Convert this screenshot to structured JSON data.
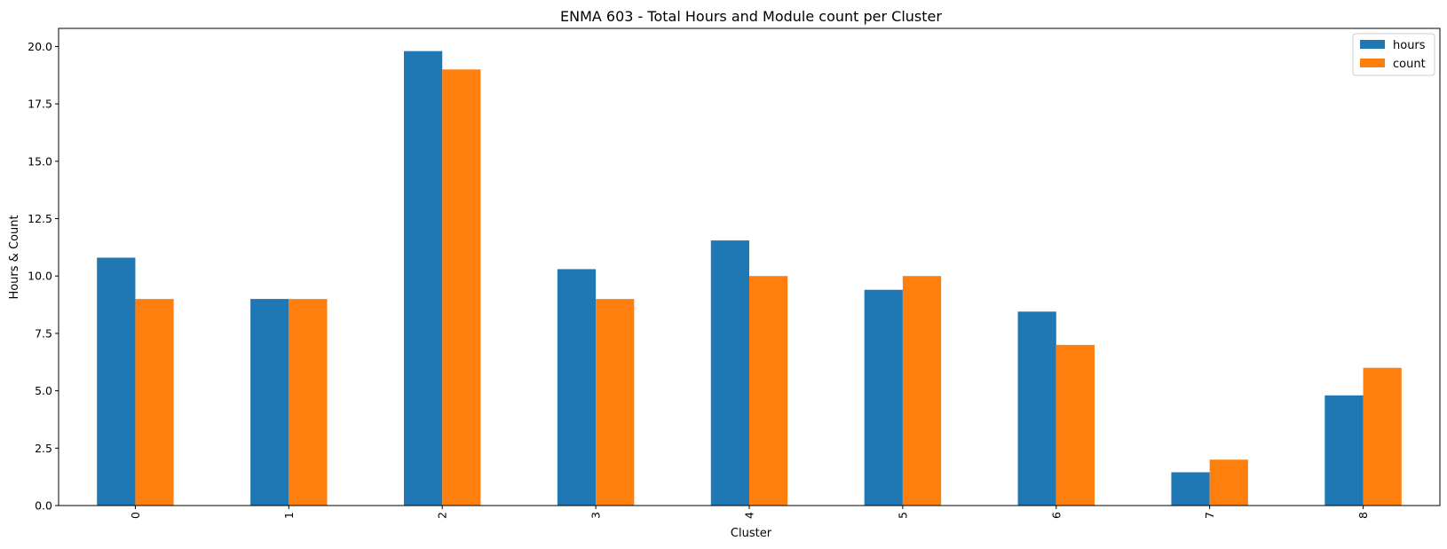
{
  "chart_data": {
    "type": "bar",
    "title": "ENMA 603 - Total Hours and Module count per Cluster",
    "xlabel": "Cluster",
    "ylabel": "Hours & Count",
    "categories": [
      "0",
      "1",
      "2",
      "3",
      "4",
      "5",
      "6",
      "7",
      "8"
    ],
    "series": [
      {
        "name": "hours",
        "color": "#1f77b4",
        "values": [
          10.8,
          9.0,
          19.8,
          10.3,
          11.55,
          9.4,
          8.45,
          1.45,
          4.8
        ]
      },
      {
        "name": "count",
        "color": "#ff7f0e",
        "values": [
          9,
          9,
          19,
          9,
          10,
          10,
          7,
          2,
          6
        ]
      }
    ],
    "ylim": [
      0,
      20.79
    ],
    "yticks": [
      0.0,
      2.5,
      5.0,
      7.5,
      10.0,
      12.5,
      15.0,
      17.5,
      20.0
    ],
    "ytick_labels": [
      "0.0",
      "2.5",
      "5.0",
      "7.5",
      "10.0",
      "12.5",
      "15.0",
      "17.5",
      "20.0"
    ],
    "grid": false,
    "legend_position": "top-right",
    "xtick_rotation": "vertical"
  }
}
